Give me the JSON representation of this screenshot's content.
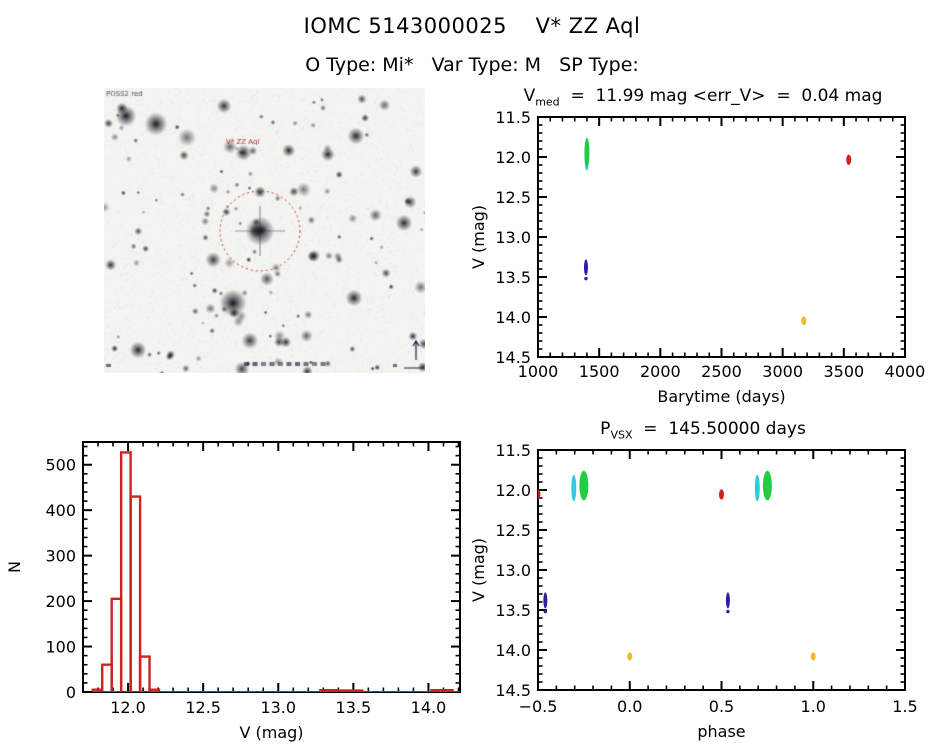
{
  "header": {
    "title": "IOMC 5143000025    V* ZZ Aql",
    "subtitle": "O Type: Mi*   Var Type: M   SP Type:"
  },
  "finder": {
    "target_label": "V* ZZ Aql",
    "survey_label": "POSS2 red"
  },
  "chart_data": [
    {
      "id": "lightcurve",
      "type": "scatter",
      "title_pre": "V",
      "title_sub": "med",
      "title_rest": "  =  11.99 mag <err_V>  =  0.04 mag",
      "xlabel": "Barytime (days)",
      "ylabel": "V (mag)",
      "xlim": [
        1000,
        4000
      ],
      "ylim_top": 11.5,
      "ylim_bottom": 14.5,
      "xticks": [
        1000,
        1500,
        2000,
        2500,
        3000,
        3500,
        4000
      ],
      "yticks": [
        11.5,
        12.0,
        12.5,
        13.0,
        13.5,
        14.0,
        14.5
      ],
      "xminor": 100,
      "yminor": 0.1,
      "xfmt": 0,
      "yfmt": 1,
      "clusters": [
        {
          "name": "cluster-cyan",
          "color": "#33ccdd",
          "x": 1398,
          "v1": 11.9,
          "v2": 12.17,
          "w": 4
        },
        {
          "name": "cluster-green",
          "color": "#22cc44",
          "x": 1400,
          "v1": 11.76,
          "v2": 12.13,
          "w": 5
        },
        {
          "name": "cluster-navy",
          "color": "#2a1f9e",
          "x": 1392,
          "v1": 13.28,
          "v2": 13.48,
          "w": 4,
          "dot": 13.52
        },
        {
          "name": "cluster-red",
          "color": "#cc2222",
          "x": 3540,
          "v1": 11.97,
          "v2": 12.1,
          "w": 5
        },
        {
          "name": "cluster-gold",
          "color": "#eebb22",
          "x": 3172,
          "v1": 13.99,
          "v2": 14.1,
          "w": 5
        }
      ]
    },
    {
      "id": "histogram",
      "type": "histogram",
      "xlabel": "V (mag)",
      "ylabel": "N",
      "xlim": [
        11.7,
        14.21
      ],
      "ylim_top": 550,
      "ylim_bottom": 0,
      "xticks": [
        12.0,
        12.5,
        13.0,
        13.5,
        14.0
      ],
      "yticks": [
        0,
        100,
        200,
        300,
        400,
        500
      ],
      "xminor": 0.1,
      "yminor": 20,
      "xfmt": 1,
      "yfmt": 0,
      "color": "#cc2222",
      "bin_edges": [
        11.765,
        11.828,
        11.891,
        11.954,
        12.017,
        12.08,
        12.143,
        12.206
      ],
      "bin_counts": [
        5,
        60,
        205,
        527,
        430,
        78,
        5
      ],
      "extra_bars": [
        {
          "x1": 13.28,
          "x2": 13.39,
          "h": 4
        },
        {
          "x1": 13.4,
          "x2": 13.56,
          "h": 3
        },
        {
          "x1": 14.02,
          "x2": 14.16,
          "h": 4
        }
      ],
      "baseline": [
        11.765,
        14.21
      ]
    },
    {
      "id": "phase",
      "type": "scatter",
      "title_pre": "P",
      "title_sub": "VSX",
      "title_rest": "  =  145.50000 days",
      "xlabel": "phase",
      "ylabel": "V (mag)",
      "xlim": [
        -0.5,
        1.5
      ],
      "ylim_top": 11.5,
      "ylim_bottom": 14.5,
      "xticks": [
        -0.5,
        0.0,
        0.5,
        1.0,
        1.5
      ],
      "yticks": [
        11.5,
        12.0,
        12.5,
        13.0,
        13.5,
        14.0,
        14.5
      ],
      "xminor": 0.1,
      "yminor": 0.1,
      "xfmt": 1,
      "yfmt": 1,
      "clusters": [
        {
          "name": "cluster-red-left",
          "color": "#cc2222",
          "x": -0.5,
          "v1": 11.99,
          "v2": 12.12,
          "w": 5
        },
        {
          "name": "cluster-navy-left",
          "color": "#2a1f9e",
          "x": -0.46,
          "v1": 13.28,
          "v2": 13.48,
          "w": 4,
          "dot": 13.52
        },
        {
          "name": "cluster-cyan-left",
          "color": "#33ccdd",
          "x": -0.305,
          "v1": 11.81,
          "v2": 12.14,
          "w": 5
        },
        {
          "name": "cluster-green-left",
          "color": "#22cc44",
          "x": -0.25,
          "v1": 11.76,
          "v2": 12.13,
          "w": 9
        },
        {
          "name": "cluster-gold-left",
          "color": "#eebb22",
          "x": 0.0,
          "v1": 14.03,
          "v2": 14.13,
          "w": 5
        },
        {
          "name": "cluster-red-mid",
          "color": "#cc2222",
          "x": 0.5,
          "v1": 11.99,
          "v2": 12.12,
          "w": 5
        },
        {
          "name": "cluster-navy-mid",
          "color": "#2a1f9e",
          "x": 0.535,
          "v1": 13.28,
          "v2": 13.48,
          "w": 4,
          "dot": 13.52
        },
        {
          "name": "cluster-cyan-right",
          "color": "#33ccdd",
          "x": 0.695,
          "v1": 11.81,
          "v2": 12.14,
          "w": 5
        },
        {
          "name": "cluster-green-right",
          "color": "#22cc44",
          "x": 0.75,
          "v1": 11.76,
          "v2": 12.13,
          "w": 9
        },
        {
          "name": "cluster-gold-right",
          "color": "#eebb22",
          "x": 1.0,
          "v1": 14.03,
          "v2": 14.13,
          "w": 5
        }
      ]
    }
  ]
}
